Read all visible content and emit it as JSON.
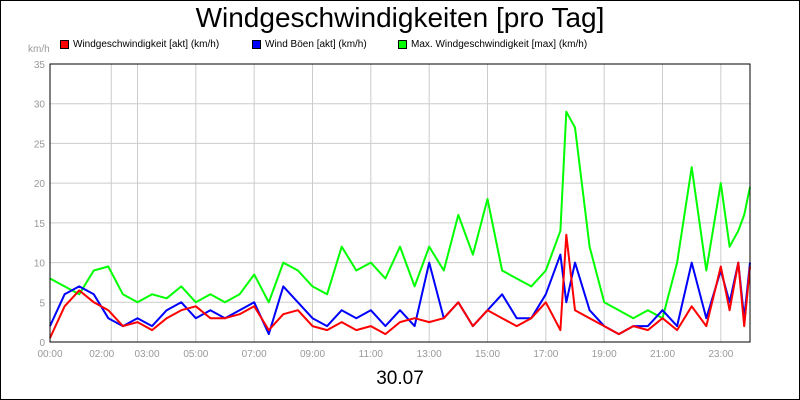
{
  "chart_data": {
    "type": "line",
    "title": "Windgeschwindigkeiten [pro Tag]",
    "ylabel": "km/h",
    "xlabel": "30.07",
    "ylim": [
      0,
      35
    ],
    "yticks": [
      0,
      5,
      10,
      15,
      20,
      25,
      30,
      35
    ],
    "xlim_hours": [
      0,
      24
    ],
    "xticks": [
      {
        "label": "00:00",
        "hour": 0
      },
      {
        "label": "02:00",
        "hour": 2.1
      },
      {
        "label": "03:00",
        "hour": 3.0
      },
      {
        "label": "05:00",
        "hour": 5.0
      },
      {
        "label": "07:00",
        "hour": 7.0
      },
      {
        "label": "09:00",
        "hour": 9.0
      },
      {
        "label": "11:00",
        "hour": 11.0
      },
      {
        "label": "13:00",
        "hour": 13.0
      },
      {
        "label": "15:00",
        "hour": 15.0
      },
      {
        "label": "17:00",
        "hour": 17.0
      },
      {
        "label": "19:00",
        "hour": 19.0
      },
      {
        "label": "21:00",
        "hour": 21.0
      },
      {
        "label": "23:00",
        "hour": 23.0
      }
    ],
    "grid": true,
    "legend_position": "top",
    "series": [
      {
        "name": "Windgeschwindigkeit [akt] (km/h)",
        "color": "#ff0000",
        "hours": [
          0,
          0.5,
          1,
          1.5,
          2,
          2.5,
          3,
          3.5,
          4,
          4.5,
          5,
          5.5,
          6,
          6.5,
          7,
          7.5,
          8,
          8.5,
          9,
          9.5,
          10,
          10.5,
          11,
          11.5,
          12,
          12.5,
          13,
          13.5,
          14,
          14.5,
          15,
          15.5,
          16,
          16.5,
          17,
          17.5,
          17.7,
          18,
          18.5,
          19,
          19.5,
          20,
          20.5,
          21,
          21.5,
          22,
          22.5,
          23,
          23.3,
          23.6,
          23.8,
          24
        ],
        "values": [
          0.5,
          4.5,
          6.5,
          5,
          4,
          2,
          2.5,
          1.5,
          3,
          4,
          4.5,
          3,
          3,
          3.5,
          4.5,
          1.5,
          3.5,
          4,
          2,
          1.5,
          2.5,
          1.5,
          2,
          1,
          2.5,
          3,
          2.5,
          3,
          5,
          2,
          4,
          3,
          2,
          3,
          5,
          1.5,
          13.5,
          4,
          3,
          2,
          1,
          2,
          1.5,
          3,
          1.5,
          4.5,
          2,
          9.5,
          4,
          10,
          2,
          9.5
        ]
      },
      {
        "name": "Wind Böen [akt] (km/h)",
        "color": "#0000ff",
        "hours": [
          0,
          0.5,
          1,
          1.5,
          2,
          2.5,
          3,
          3.5,
          4,
          4.5,
          5,
          5.5,
          6,
          6.5,
          7,
          7.5,
          8,
          8.5,
          9,
          9.5,
          10,
          10.5,
          11,
          11.5,
          12,
          12.5,
          13,
          13.5,
          14,
          14.5,
          15,
          15.5,
          16,
          16.5,
          17,
          17.5,
          17.7,
          18,
          18.5,
          19,
          19.5,
          20,
          20.5,
          21,
          21.5,
          22,
          22.5,
          23,
          23.3,
          23.6,
          23.8,
          24
        ],
        "values": [
          2,
          6,
          7,
          6,
          3,
          2,
          3,
          2,
          4,
          5,
          3,
          4,
          3,
          4,
          5,
          1,
          7,
          5,
          3,
          2,
          4,
          3,
          4,
          2,
          4,
          2,
          10,
          3,
          5,
          2,
          4,
          6,
          3,
          3,
          6,
          11,
          5,
          10,
          4,
          2,
          1,
          2,
          2,
          4,
          2,
          10,
          3,
          9,
          5,
          10,
          3,
          10
        ]
      },
      {
        "name": "Max. Windgeschwindigkeit [max] (km/h)",
        "color": "#00ff00",
        "hours": [
          0,
          0.5,
          1,
          1.5,
          2,
          2.5,
          3,
          3.5,
          4,
          4.5,
          5,
          5.5,
          6,
          6.5,
          7,
          7.5,
          8,
          8.5,
          9,
          9.5,
          10,
          10.5,
          11,
          11.5,
          12,
          12.5,
          13,
          13.5,
          14,
          14.5,
          15,
          15.5,
          16,
          16.5,
          17,
          17.5,
          17.7,
          18,
          18.5,
          19,
          19.5,
          20,
          20.5,
          21,
          21.5,
          22,
          22.5,
          23,
          23.3,
          23.6,
          23.8,
          24
        ],
        "values": [
          8,
          7,
          6,
          9,
          9.5,
          6,
          5,
          6,
          5.5,
          7,
          5,
          6,
          5,
          6,
          8.5,
          5,
          10,
          9,
          7,
          6,
          12,
          9,
          10,
          8,
          12,
          7,
          12,
          9,
          16,
          11,
          18,
          9,
          8,
          7,
          9,
          14,
          29,
          27,
          12,
          5,
          4,
          3,
          4,
          3,
          10,
          22,
          9,
          20,
          12,
          14,
          16,
          19.5
        ]
      }
    ]
  }
}
